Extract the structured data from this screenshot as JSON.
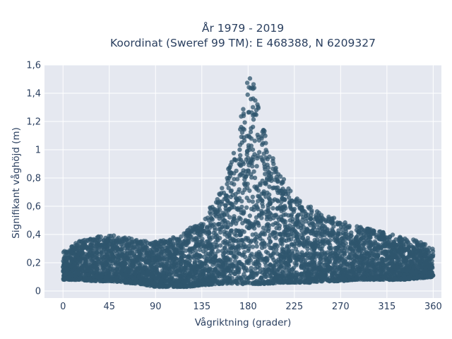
{
  "chart_data": {
    "type": "scatter",
    "title_line1": "År 1979 - 2019",
    "title_line2": "Koordinat (Sweref 99 TM): E 468388, N 6209327",
    "xlabel": "Vågriktning (grader)",
    "ylabel": "Signifikant våghöjd (m)",
    "xlim": [
      -18,
      368
    ],
    "ylim": [
      -0.05,
      1.6
    ],
    "x_ticks": [
      0,
      45,
      90,
      135,
      180,
      225,
      270,
      315,
      360
    ],
    "x_tick_labels": [
      "0",
      "45",
      "90",
      "135",
      "180",
      "225",
      "270",
      "315",
      "360"
    ],
    "y_ticks": [
      0,
      0.2,
      0.4,
      0.6,
      0.8,
      1,
      1.2,
      1.4,
      1.6
    ],
    "y_tick_labels": [
      "0",
      "0,2",
      "0,4",
      "0,6",
      "0,8",
      "1",
      "1,2",
      "1,4",
      "1,6"
    ],
    "grid": true,
    "marker_color": "#2f566e",
    "plot_bg": "#e5e8f0",
    "envelope": {
      "x": [
        0,
        15,
        30,
        45,
        60,
        75,
        90,
        105,
        120,
        135,
        150,
        160,
        170,
        175,
        180,
        185,
        190,
        200,
        210,
        225,
        240,
        255,
        270,
        285,
        300,
        315,
        330,
        345,
        360
      ],
      "y_max": [
        0.28,
        0.35,
        0.39,
        0.4,
        0.38,
        0.36,
        0.35,
        0.37,
        0.43,
        0.5,
        0.67,
        0.85,
        1.08,
        1.32,
        1.53,
        1.48,
        1.3,
        1.02,
        0.85,
        0.67,
        0.6,
        0.54,
        0.5,
        0.46,
        0.44,
        0.41,
        0.38,
        0.36,
        0.3
      ],
      "y_min": [
        0.08,
        0.08,
        0.07,
        0.07,
        0.06,
        0.05,
        0.03,
        0.03,
        0.03,
        0.04,
        0.05,
        0.05,
        0.05,
        0.05,
        0.05,
        0.05,
        0.05,
        0.05,
        0.06,
        0.06,
        0.06,
        0.07,
        0.07,
        0.08,
        0.08,
        0.08,
        0.08,
        0.09,
        0.1
      ]
    }
  }
}
